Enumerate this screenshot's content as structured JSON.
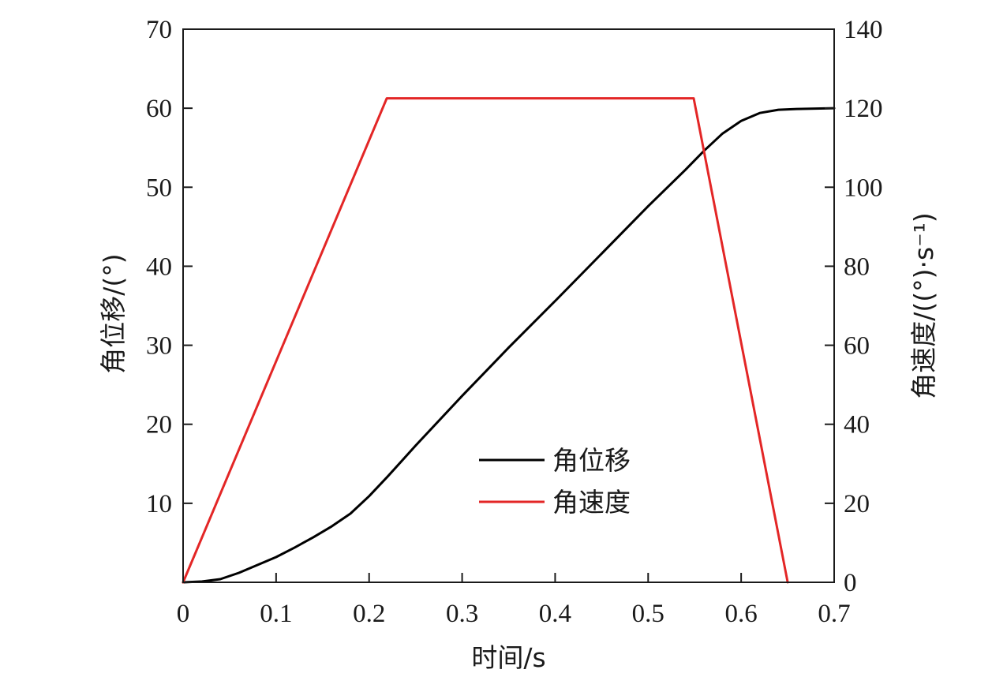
{
  "chart_data": {
    "type": "line",
    "xlabel": "时间/s",
    "ylabel_left": "角位移/(°)",
    "ylabel_right": "角速度/((°)·s⁻¹)",
    "xlim": [
      0,
      0.7
    ],
    "ylim_left": [
      0,
      70
    ],
    "ylim_right": [
      0,
      140
    ],
    "x_ticks": [
      "0",
      "0.1",
      "0.2",
      "0.3",
      "0.4",
      "0.5",
      "0.6",
      "0.7"
    ],
    "y_left_ticks": [
      "10",
      "20",
      "30",
      "40",
      "50",
      "60",
      "70"
    ],
    "y_right_ticks": [
      "0",
      "20",
      "40",
      "60",
      "80",
      "100",
      "120",
      "140"
    ],
    "grid": false,
    "legend_position": "center-bottom",
    "series": [
      {
        "name": "角位移",
        "axis": "left",
        "color": "#000000",
        "x": [
          0,
          0.02,
          0.04,
          0.06,
          0.08,
          0.1,
          0.12,
          0.14,
          0.16,
          0.18,
          0.2,
          0.22,
          0.25,
          0.3,
          0.35,
          0.4,
          0.45,
          0.5,
          0.54,
          0.56,
          0.58,
          0.6,
          0.62,
          0.64,
          0.66,
          0.7
        ],
        "y": [
          0,
          0.1,
          0.4,
          1.2,
          2.2,
          3.2,
          4.4,
          5.7,
          7.1,
          8.7,
          10.9,
          13.4,
          17.3,
          23.6,
          29.7,
          35.6,
          41.6,
          47.6,
          52.2,
          54.6,
          56.8,
          58.4,
          59.4,
          59.8,
          59.9,
          60.0
        ]
      },
      {
        "name": "角速度",
        "axis": "right",
        "color": "#e32626",
        "x": [
          0,
          0.219,
          0.549,
          0.65
        ],
        "y": [
          0,
          122.5,
          122.5,
          0
        ]
      }
    ]
  }
}
